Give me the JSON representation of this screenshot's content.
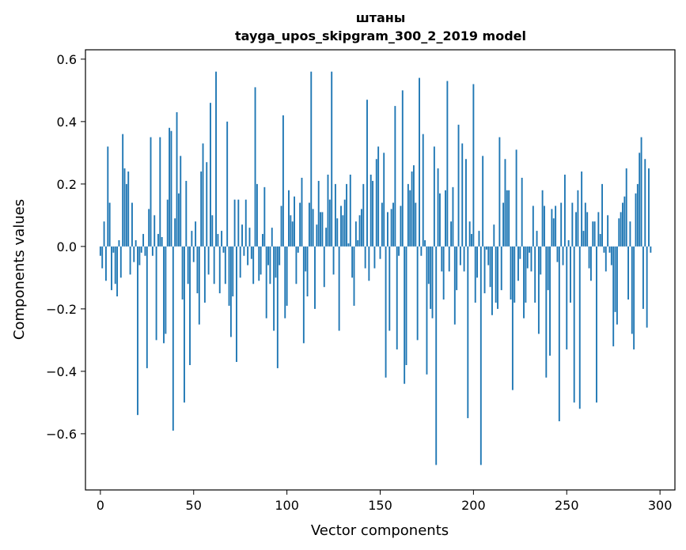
{
  "chart_data": {
    "type": "bar",
    "title": "штаны",
    "subtitle": "tayga_upos_skipgram_300_2_2019 model",
    "xlabel": "Vector components",
    "ylabel": "Components values",
    "xlim": [
      -8,
      308
    ],
    "ylim": [
      -0.78,
      0.63
    ],
    "xticks": [
      0,
      50,
      100,
      150,
      200,
      250,
      300
    ],
    "xtick_labels": [
      "0",
      "50",
      "100",
      "150",
      "200",
      "250",
      "300"
    ],
    "yticks": [
      -0.6,
      -0.4,
      -0.2,
      0.0,
      0.2,
      0.4,
      0.6
    ],
    "ytick_labels": [
      "−0.6",
      "−0.4",
      "−0.2",
      "0.0",
      "0.2",
      "0.4",
      "0.6"
    ],
    "bar_color": "#1f77b4",
    "values": [
      -0.03,
      -0.07,
      0.08,
      -0.11,
      0.32,
      0.14,
      -0.14,
      -0.02,
      -0.12,
      -0.16,
      0.02,
      -0.1,
      0.36,
      0.25,
      0.2,
      0.24,
      -0.09,
      0.14,
      -0.05,
      0.02,
      -0.54,
      -0.06,
      -0.02,
      0.04,
      -0.03,
      -0.39,
      0.12,
      0.35,
      -0.03,
      0.1,
      -0.3,
      0.04,
      0.35,
      0.03,
      -0.31,
      -0.28,
      0.15,
      0.38,
      0.37,
      -0.59,
      0.09,
      0.43,
      0.17,
      0.29,
      -0.17,
      -0.5,
      0.21,
      -0.12,
      -0.38,
      0.05,
      -0.05,
      0.08,
      -0.15,
      -0.25,
      0.24,
      0.33,
      -0.18,
      0.27,
      -0.09,
      0.46,
      0.1,
      -0.12,
      0.56,
      0.04,
      -0.15,
      0.05,
      -0.02,
      -0.12,
      0.4,
      -0.19,
      -0.29,
      -0.16,
      0.15,
      -0.37,
      0.15,
      -0.1,
      0.07,
      -0.03,
      0.15,
      -0.06,
      0.06,
      -0.04,
      -0.12,
      0.51,
      0.2,
      -0.11,
      -0.09,
      0.04,
      0.19,
      -0.23,
      -0.06,
      -0.12,
      0.06,
      -0.27,
      -0.1,
      -0.39,
      -0.06,
      0.13,
      0.42,
      -0.23,
      -0.19,
      0.18,
      0.1,
      0.08,
      0.16,
      -0.12,
      -0.02,
      0.14,
      0.22,
      -0.31,
      -0.08,
      -0.16,
      0.14,
      0.56,
      0.12,
      -0.2,
      0.07,
      0.21,
      0.11,
      0.11,
      -0.13,
      0.06,
      0.23,
      0.15,
      0.56,
      -0.09,
      0.2,
      0.09,
      -0.27,
      0.13,
      0.1,
      0.15,
      0.2,
      0.01,
      0.23,
      -0.1,
      -0.19,
      0.08,
      0.02,
      0.1,
      0.12,
      0.2,
      -0.07,
      0.47,
      -0.11,
      0.23,
      0.21,
      -0.07,
      0.28,
      0.32,
      -0.04,
      0.14,
      0.3,
      -0.42,
      0.11,
      -0.27,
      0.12,
      0.14,
      0.45,
      -0.33,
      -0.03,
      0.13,
      0.5,
      -0.44,
      -0.38,
      0.2,
      0.18,
      0.24,
      0.26,
      0.14,
      -0.3,
      0.54,
      -0.03,
      0.36,
      0.02,
      -0.41,
      -0.12,
      -0.2,
      -0.23,
      0.32,
      -0.7,
      0.25,
      0.17,
      -0.08,
      -0.17,
      0.18,
      0.53,
      -0.08,
      0.08,
      0.19,
      -0.25,
      -0.14,
      0.39,
      -0.06,
      0.33,
      -0.08,
      0.28,
      -0.55,
      0.08,
      0.04,
      0.52,
      -0.18,
      -0.1,
      0.05,
      -0.7,
      0.29,
      -0.15,
      -0.01,
      -0.06,
      -0.13,
      -0.22,
      0.07,
      -0.18,
      -0.2,
      0.35,
      -0.14,
      0.14,
      0.28,
      0.18,
      0.18,
      -0.17,
      -0.46,
      -0.18,
      0.31,
      -0.11,
      -0.04,
      0.22,
      -0.23,
      -0.18,
      -0.07,
      -0.02,
      -0.08,
      0.13,
      -0.18,
      0.05,
      -0.28,
      -0.09,
      0.18,
      0.13,
      -0.42,
      -0.14,
      -0.35,
      0.12,
      0.09,
      0.13,
      -0.05,
      -0.56,
      0.14,
      -0.06,
      0.23,
      -0.33,
      0.02,
      -0.18,
      0.14,
      -0.5,
      0.11,
      0.18,
      -0.52,
      0.24,
      0.05,
      0.14,
      0.11,
      -0.07,
      -0.11,
      0.08,
      0.08,
      -0.5,
      0.11,
      0.04,
      0.2,
      -0.02,
      -0.08,
      0.1,
      -0.02,
      -0.06,
      -0.32,
      -0.21,
      -0.25,
      0.09,
      0.11,
      0.14,
      0.16,
      0.25,
      -0.17,
      0.08,
      -0.28,
      -0.33,
      0.17,
      0.2,
      0.3,
      0.35,
      -0.2,
      0.28,
      -0.26,
      0.25,
      -0.02
    ],
    "spine_color": "#000000",
    "background": "#ffffff"
  }
}
